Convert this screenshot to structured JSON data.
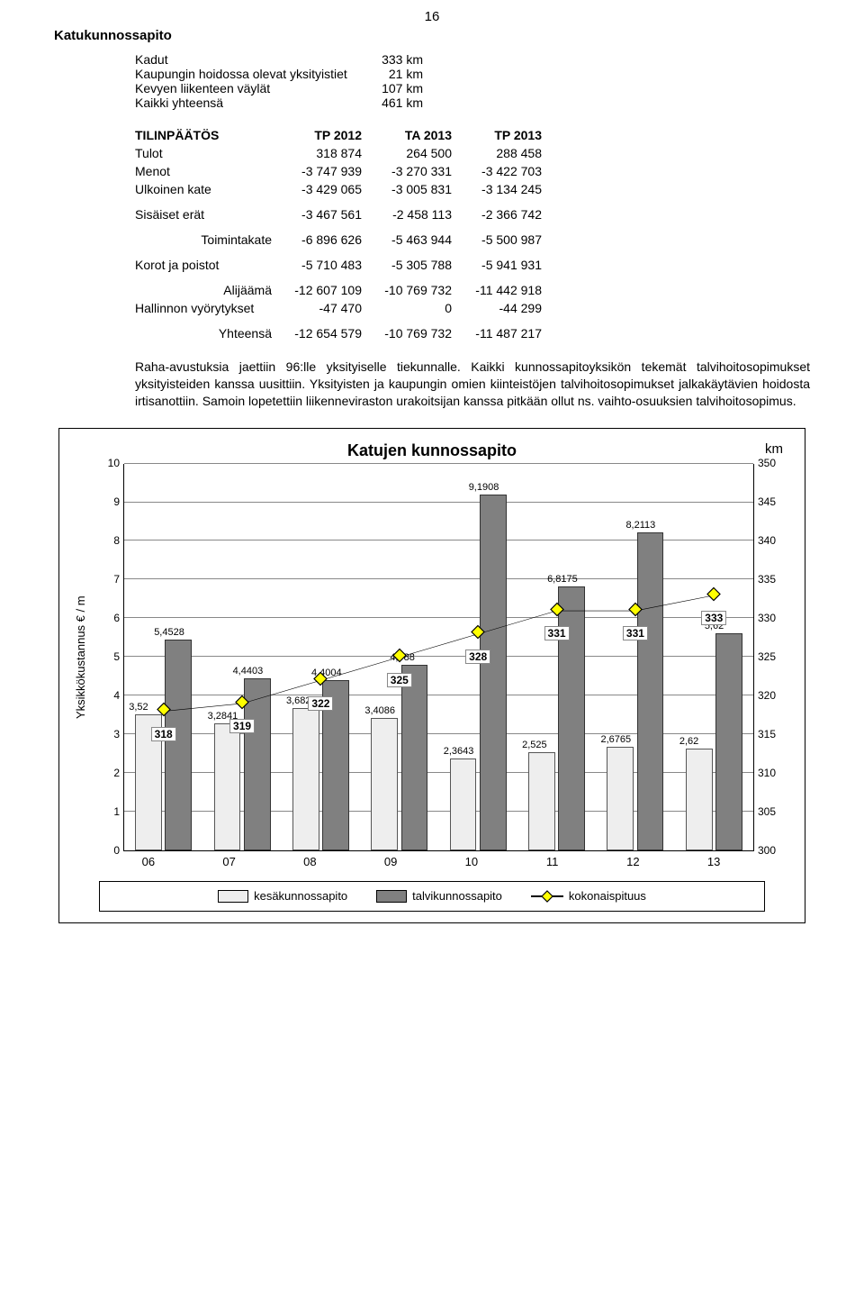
{
  "page_number": "16",
  "title": "Katukunnossapito",
  "stats": [
    {
      "label": "Kadut",
      "value": "333 km"
    },
    {
      "label": "Kaupungin hoidossa olevat yksityistiet",
      "value": "21 km"
    },
    {
      "label": "Kevyen liikenteen väylät",
      "value": "107 km"
    },
    {
      "label": "Kaikki yhteensä",
      "value": "461 km"
    }
  ],
  "table": {
    "headers": [
      "TILINPÄÄTÖS",
      "TP 2012",
      "TA 2013",
      "TP 2013"
    ],
    "rows": [
      [
        "Tulot",
        "318 874",
        "264 500",
        "288 458"
      ],
      [
        "Menot",
        "-3 747 939",
        "-3 270 331",
        "-3 422 703"
      ],
      [
        "Ulkoinen kate",
        "-3 429 065",
        "-3 005 831",
        "-3 134 245"
      ],
      [
        "",
        "",
        "",
        ""
      ],
      [
        "Sisäiset erät",
        "-3 467 561",
        "-2 458 113",
        "-2 366 742"
      ],
      [
        "",
        "",
        "",
        ""
      ],
      [
        "Toimintakate",
        "-6 896 626",
        "-5 463 944",
        "-5 500 987"
      ],
      [
        "",
        "",
        "",
        ""
      ],
      [
        "Korot ja poistot",
        "-5 710 483",
        "-5 305 788",
        "-5 941 931"
      ],
      [
        "",
        "",
        "",
        ""
      ],
      [
        "Alijäämä",
        "-12 607 109",
        "-10 769 732",
        "-11 442 918"
      ],
      [
        "Hallinnon vyörytykset",
        "-47 470",
        "0",
        "-44 299"
      ],
      [
        "",
        "",
        "",
        ""
      ],
      [
        "Yhteensä",
        "-12 654 579",
        "-10 769 732",
        "-11 487 217"
      ]
    ],
    "right_align_first": [
      "Toimintakate",
      "Alijäämä",
      "Yhteensä"
    ]
  },
  "body_text": "Raha-avustuksia jaettiin 96:lle yksityiselle tiekunnalle. Kaikki kunnossapitoyksikön tekemät talvihoitosopimukset yksityisteiden kanssa uusittiin. Yksityisten ja kaupungin omien kiinteistöjen talvihoitosopimukset jalkakäytävien hoidosta irtisanottiin. Samoin lopetettiin liikenneviraston urakoitsijan kanssa pitkään ollut ns. vaihto-osuuksien talvihoitosopimus.",
  "chart": {
    "title": "Katujen kunnossapito",
    "km_label": "km",
    "y_left_label": "Yksikkökustannus € / m",
    "y_left": {
      "min": 0,
      "max": 10,
      "ticks": [
        "10",
        "9",
        "8",
        "7",
        "6",
        "5",
        "4",
        "3",
        "2",
        "1",
        "0"
      ]
    },
    "y_right": {
      "min": 300,
      "max": 350,
      "ticks": [
        "350",
        "345",
        "340",
        "335",
        "330",
        "325",
        "320",
        "315",
        "310",
        "305",
        "300"
      ]
    },
    "categories": [
      "06",
      "07",
      "08",
      "09",
      "10",
      "11",
      "12",
      "13"
    ],
    "series": {
      "summer": {
        "label": "kesäkunnossapito",
        "color": "#eeeeee",
        "values": [
          3.52,
          3.2841,
          3.6822,
          3.4086,
          2.3643,
          2.525,
          2.6765,
          2.62
        ]
      },
      "winter": {
        "label": "talvikunnossapito",
        "color": "#808080",
        "values": [
          5.4528,
          4.4403,
          4.4004,
          4.788,
          9.1908,
          6.8175,
          8.2113,
          5.62
        ]
      },
      "line": {
        "label": "kokonaispituus",
        "color": "#000000",
        "values_km": [
          318,
          319,
          322,
          325,
          328,
          331,
          331,
          333
        ]
      }
    },
    "data_labels": {
      "summer": [
        "3,52",
        "3,2841",
        "3,6822",
        "3,4086",
        "2,3643",
        "2,525",
        "2,6765",
        "2,62"
      ],
      "winter": [
        "5,4528",
        "4,4403",
        "4,4004",
        "4,788",
        "9,1908",
        "6,8175",
        "8,2113",
        "5,62"
      ],
      "line": [
        "318",
        "319",
        "322",
        "325",
        "328",
        "331",
        "331",
        "333"
      ]
    }
  }
}
